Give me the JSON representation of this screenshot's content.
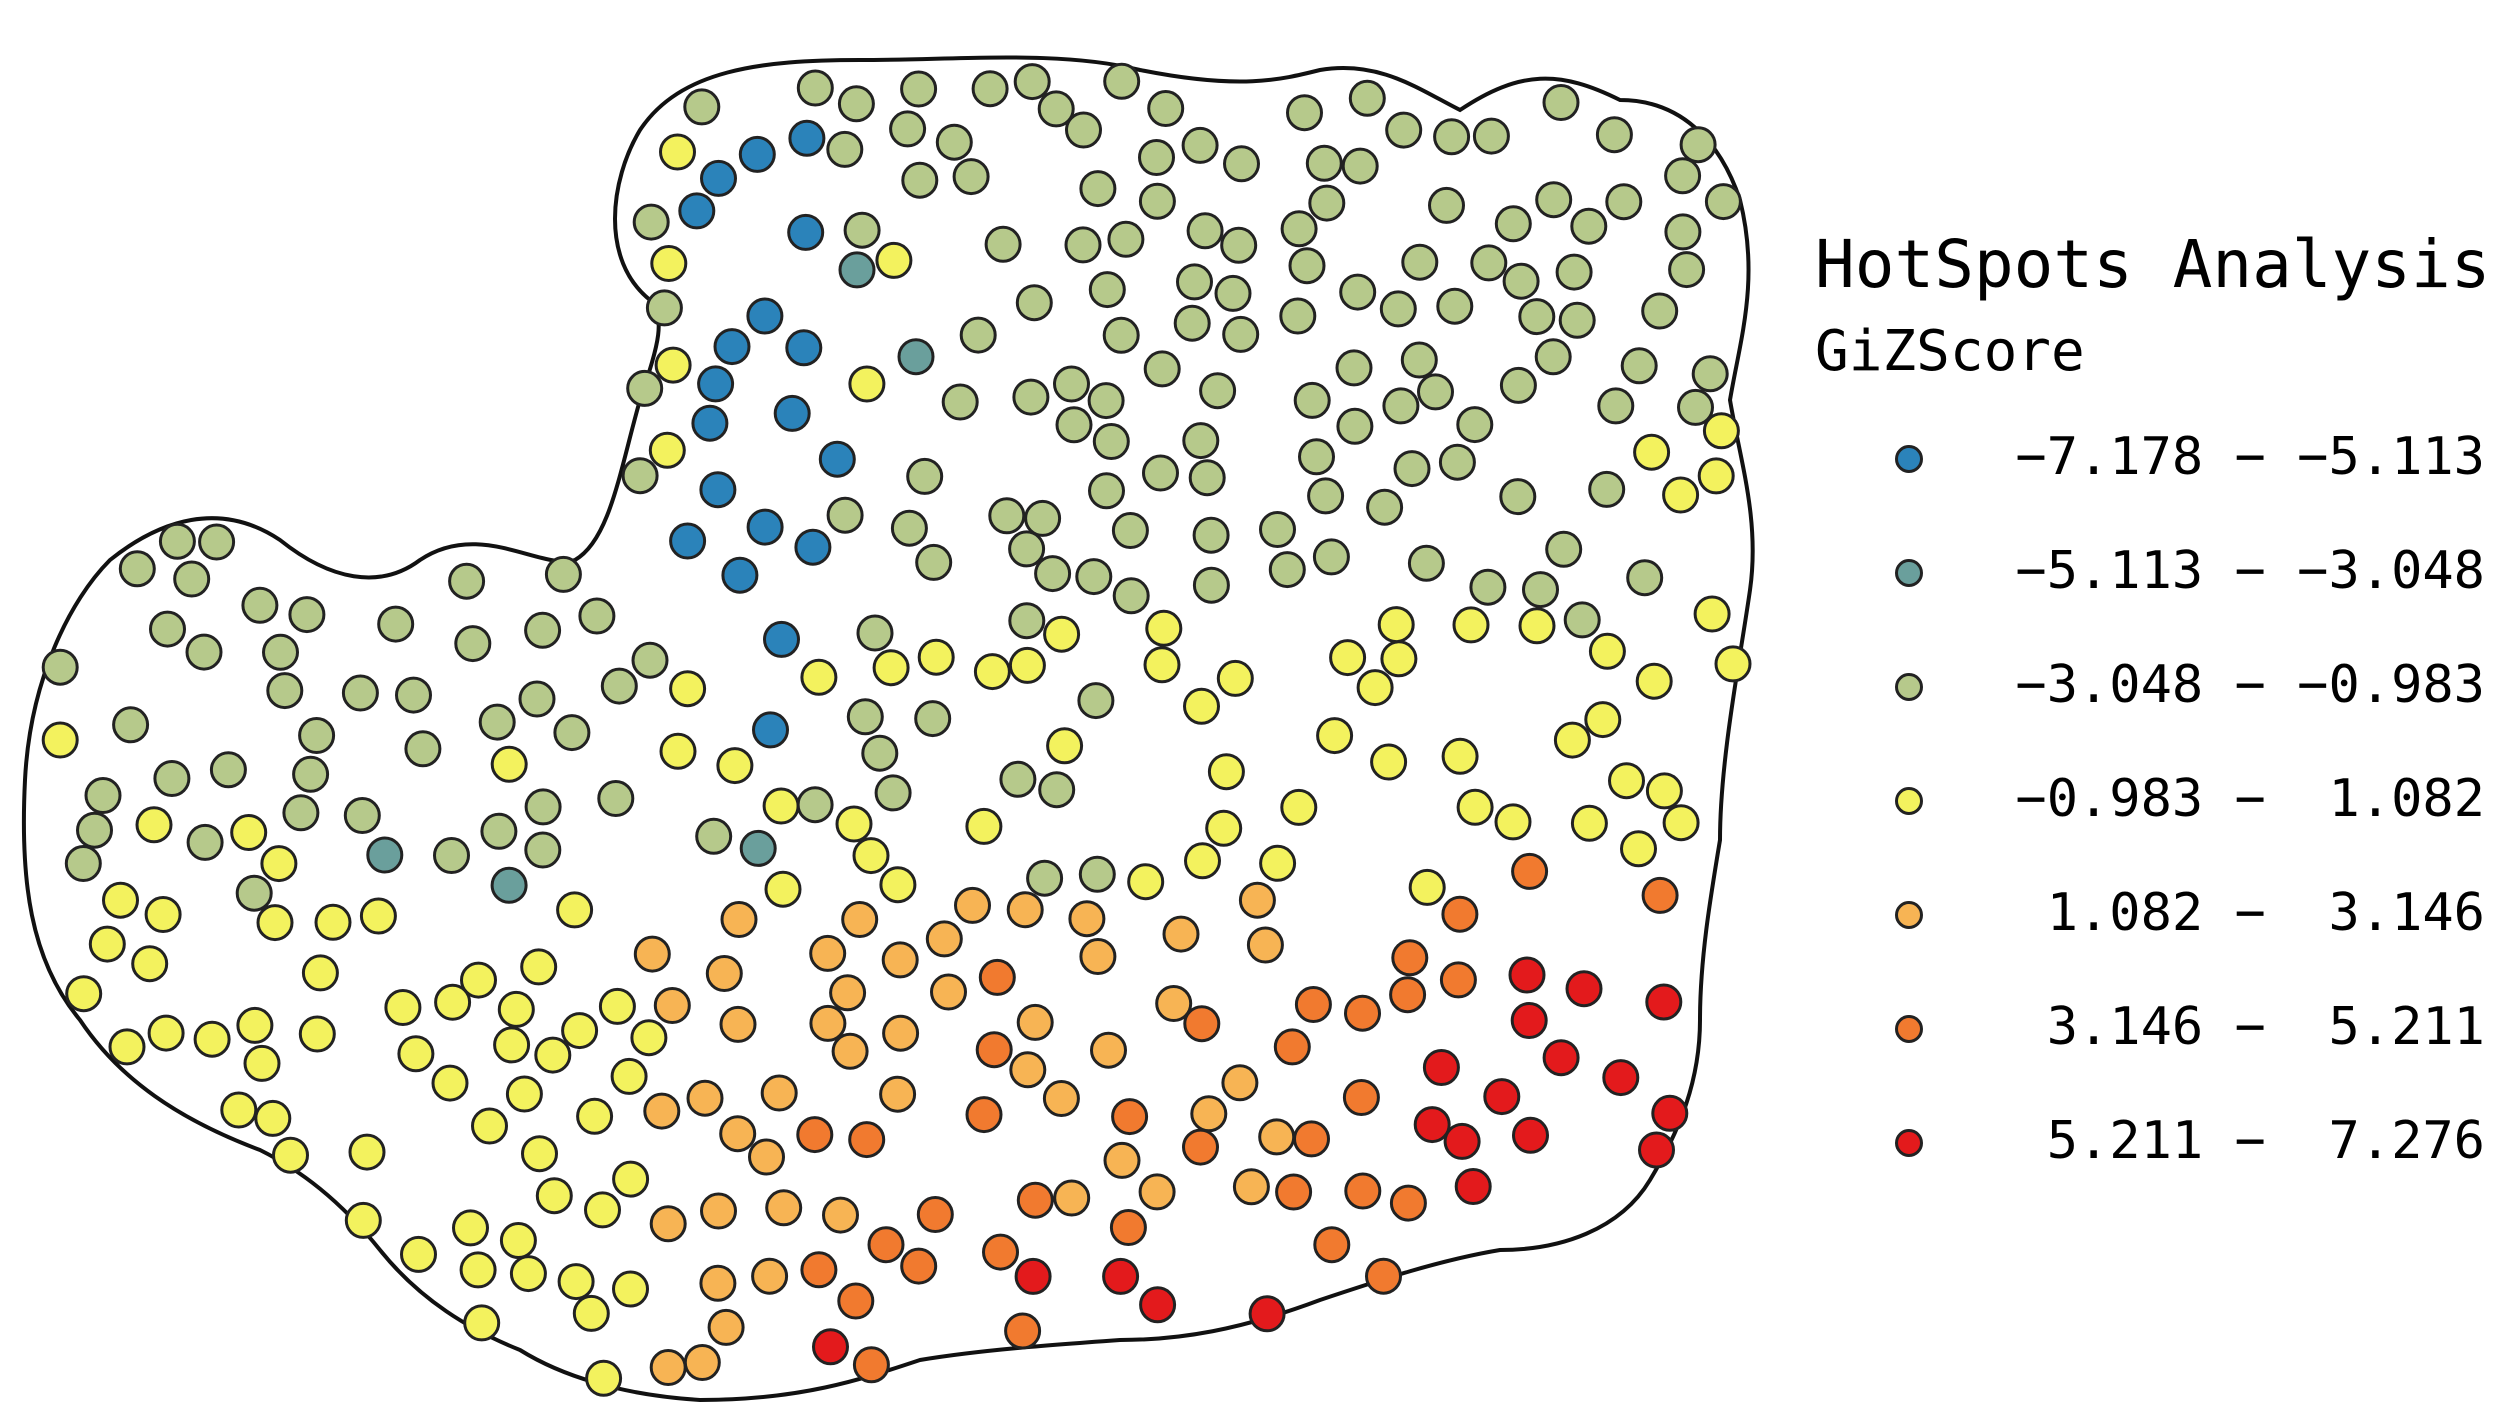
{
  "legend": {
    "title": "HotSpots Analysis",
    "subtitle": "GiZScore",
    "classes": [
      {
        "label": "−7.178 − −5.113",
        "color": "#2b83ba"
      },
      {
        "label": "−5.113 − −3.048",
        "color": "#6a9f9c"
      },
      {
        "label": "−3.048 − −0.983",
        "color": "#b6c98b"
      },
      {
        "label": "−0.983 −  1.082",
        "color": "#f3f25e"
      },
      {
        "label": " 1.082 −  3.146",
        "color": "#f7b454"
      },
      {
        "label": " 3.146 −  5.211",
        "color": "#f17a2f"
      },
      {
        "label": " 5.211 −  7.276",
        "color": "#e31a1c"
      }
    ]
  }
}
